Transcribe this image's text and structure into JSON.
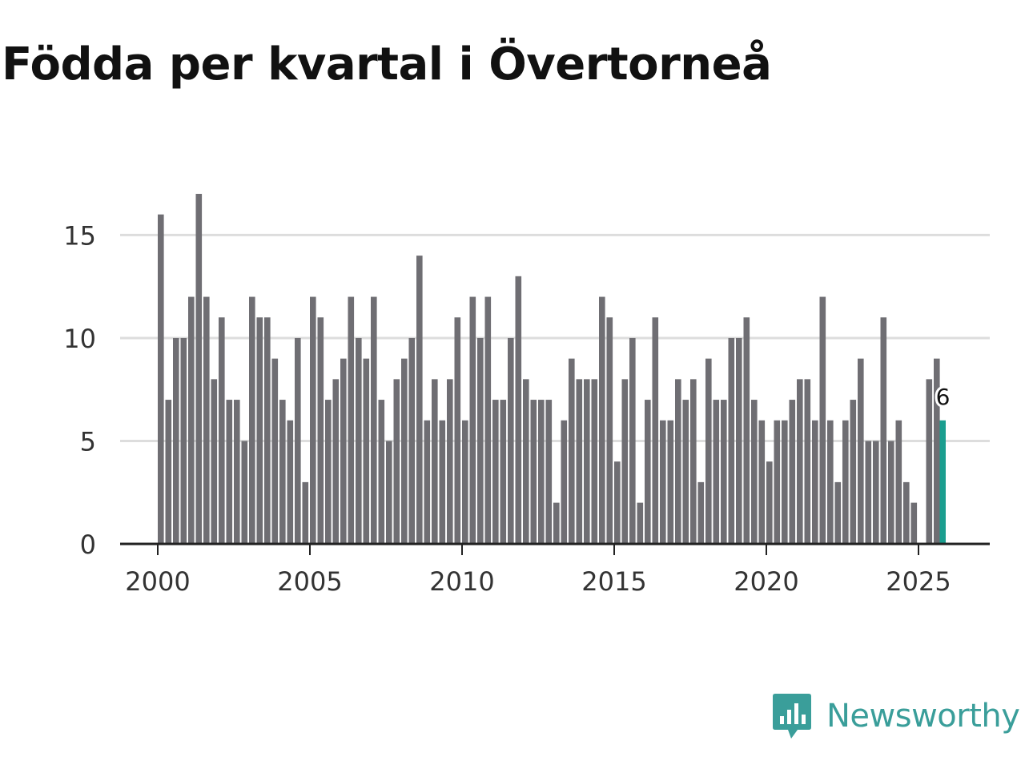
{
  "chart_data": {
    "type": "bar",
    "title": "Födda per kvartal i Övertorneå",
    "xlabel": "",
    "ylabel": "",
    "start_year": 2000,
    "periods_per_year": 4,
    "ylim": [
      0,
      17
    ],
    "yticks": [
      0,
      5,
      10,
      15
    ],
    "xticks": [
      2000,
      2005,
      2010,
      2015,
      2020,
      2025
    ],
    "grid": true,
    "values": [
      16,
      7,
      10,
      10,
      12,
      17,
      12,
      8,
      11,
      7,
      7,
      5,
      12,
      11,
      11,
      9,
      7,
      6,
      10,
      3,
      12,
      11,
      7,
      8,
      9,
      12,
      10,
      9,
      12,
      7,
      5,
      8,
      9,
      10,
      14,
      6,
      8,
      6,
      8,
      11,
      6,
      12,
      10,
      12,
      7,
      7,
      10,
      13,
      8,
      7,
      7,
      7,
      2,
      6,
      9,
      8,
      8,
      8,
      12,
      11,
      4,
      8,
      10,
      2,
      7,
      11,
      6,
      6,
      8,
      7,
      8,
      3,
      9,
      7,
      7,
      10,
      10,
      11,
      7,
      6,
      4,
      6,
      6,
      7,
      8,
      8,
      6,
      12,
      6,
      3,
      6,
      7,
      9,
      5,
      5,
      11,
      5,
      6,
      3,
      2,
      0,
      8,
      9,
      6
    ],
    "highlight_index": 103,
    "highlight_label": "6",
    "colors": {
      "bar": "#6f6e73",
      "highlight": "#1a9e8f",
      "grid": "#dddddd",
      "axis": "#222222"
    }
  },
  "brand": {
    "name": "Newsworthy",
    "icon": "newsworthy-logo-icon",
    "color": "#3a9e9a"
  }
}
